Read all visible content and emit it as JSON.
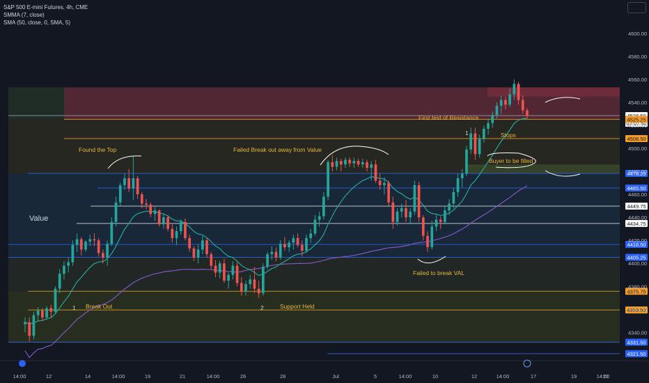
{
  "legend": {
    "symbol": "S&P 500 E-mini Futures, 4h, CME",
    "smma": "SMMA (7, close)",
    "sma": "SMA (50, close, 0, SMA, 5)"
  },
  "colors": {
    "background": "#131722",
    "bull": "#26a69a",
    "bear": "#ef5350",
    "annotation": "#e8b63a",
    "smma": "#26a69a",
    "sma": "#7e57c2"
  },
  "chart_data": {
    "type": "candlestick",
    "ylim": [
      4316,
      4612
    ],
    "y_ticks": [
      4340,
      4360,
      4380,
      4400,
      4420,
      4440,
      4460,
      4480,
      4500,
      4520,
      4540,
      4560,
      4580,
      4600
    ],
    "x_ticks": [
      "14:00",
      "12",
      "14",
      "14:00",
      "19",
      "21",
      "14:00",
      "26",
      "28",
      "Jul",
      "5",
      "14:00",
      "10",
      "12",
      "14:00",
      "17",
      "19",
      "21",
      "14:00"
    ],
    "price_labels": [
      {
        "value": "4528.50",
        "style": "current"
      },
      {
        "value": "02:07:50",
        "style": "countdown"
      },
      {
        "value": "4525.25",
        "style": "orange"
      },
      {
        "value": "4508.50",
        "style": "orange"
      },
      {
        "value": "4478.25",
        "style": "blue"
      },
      {
        "value": "4465.50",
        "style": "blue"
      },
      {
        "value": "4449.75",
        "style": "white"
      },
      {
        "value": "4434.75",
        "style": "white"
      },
      {
        "value": "4416.50",
        "style": "blue"
      },
      {
        "value": "4405.25",
        "style": "blue"
      },
      {
        "value": "4375.75",
        "style": "orange"
      },
      {
        "value": "4359.50",
        "style": "orange"
      },
      {
        "value": "4331.50",
        "style": "blue"
      },
      {
        "value": "4321.50",
        "style": "blue"
      }
    ],
    "zones": [
      {
        "name": "resistance",
        "from": 4525,
        "to": 4553,
        "color": "#5c2a35"
      },
      {
        "name": "upper",
        "from": 4478,
        "to": 4525,
        "color": "#2b2a22"
      },
      {
        "name": "value",
        "from": 4405,
        "to": 4478,
        "color": "#1b2c3c"
      },
      {
        "name": "lower",
        "from": 4376,
        "to": 4405,
        "color": "#242a24"
      },
      {
        "name": "breakout",
        "from": 4331,
        "to": 4376,
        "color": "#2b3320"
      }
    ],
    "annotations": [
      {
        "text": "Found the Top",
        "price": 4500,
        "bar": 10
      },
      {
        "text": "Failed Break out away from Value",
        "price": 4500,
        "bar": 40
      },
      {
        "text": "First test of Resistance",
        "price": 4530,
        "bar": 95
      },
      {
        "text": "Stops",
        "price": 4514,
        "bar": 115
      },
      {
        "text": "Buyer to be filled",
        "price": 4490,
        "bar": 115
      },
      {
        "text": "Value",
        "price": 4448,
        "bar": 2
      },
      {
        "text": "Failed to break VAL",
        "price": 4395,
        "bar": 97
      },
      {
        "text": "Break Out",
        "price": 4366,
        "bar": 10
      },
      {
        "text": "Support Held",
        "price": 4366,
        "bar": 63
      },
      {
        "text": "1",
        "price": 4366,
        "bar": 7
      },
      {
        "text": "2",
        "price": 4366,
        "bar": 57
      },
      {
        "text": "1",
        "price": 4517,
        "bar": 105
      }
    ],
    "candles": [
      [
        4347,
        4353,
        4340,
        4349
      ],
      [
        4349,
        4353,
        4332,
        4337
      ],
      [
        4337,
        4358,
        4334,
        4355
      ],
      [
        4355,
        4362,
        4350,
        4359
      ],
      [
        4359,
        4361,
        4350,
        4353
      ],
      [
        4353,
        4363,
        4351,
        4361
      ],
      [
        4361,
        4364,
        4353,
        4358
      ],
      [
        4358,
        4380,
        4356,
        4378
      ],
      [
        4378,
        4395,
        4374,
        4391
      ],
      [
        4391,
        4402,
        4386,
        4398
      ],
      [
        4398,
        4405,
        4392,
        4401
      ],
      [
        4401,
        4420,
        4398,
        4416
      ],
      [
        4416,
        4426,
        4410,
        4421
      ],
      [
        4421,
        4423,
        4407,
        4412
      ],
      [
        4412,
        4420,
        4410,
        4419
      ],
      [
        4419,
        4425,
        4415,
        4421
      ],
      [
        4421,
        4426,
        4415,
        4420
      ],
      [
        4420,
        4422,
        4406,
        4409
      ],
      [
        4409,
        4412,
        4400,
        4405
      ],
      [
        4405,
        4420,
        4398,
        4417
      ],
      [
        4417,
        4440,
        4415,
        4436
      ],
      [
        4436,
        4458,
        4432,
        4453
      ],
      [
        4453,
        4470,
        4450,
        4468
      ],
      [
        4468,
        4478,
        4464,
        4474
      ],
      [
        4474,
        4482,
        4462,
        4465
      ],
      [
        4465,
        4493,
        4455,
        4474
      ],
      [
        4474,
        4476,
        4456,
        4460
      ],
      [
        4460,
        4462,
        4448,
        4452
      ],
      [
        4452,
        4456,
        4447,
        4451
      ],
      [
        4451,
        4453,
        4440,
        4443
      ],
      [
        4443,
        4449,
        4437,
        4446
      ],
      [
        4446,
        4447,
        4432,
        4434
      ],
      [
        4434,
        4443,
        4430,
        4440
      ],
      [
        4440,
        4442,
        4428,
        4430
      ],
      [
        4430,
        4435,
        4418,
        4422
      ],
      [
        4422,
        4432,
        4416,
        4428
      ],
      [
        4428,
        4438,
        4425,
        4436
      ],
      [
        4436,
        4439,
        4420,
        4422
      ],
      [
        4422,
        4425,
        4410,
        4413
      ],
      [
        4413,
        4415,
        4402,
        4405
      ],
      [
        4405,
        4416,
        4400,
        4412
      ],
      [
        4412,
        4424,
        4408,
        4420
      ],
      [
        4420,
        4422,
        4405,
        4408
      ],
      [
        4408,
        4410,
        4395,
        4398
      ],
      [
        4398,
        4403,
        4388,
        4392
      ],
      [
        4392,
        4402,
        4387,
        4400
      ],
      [
        4400,
        4404,
        4383,
        4385
      ],
      [
        4385,
        4392,
        4378,
        4390
      ],
      [
        4390,
        4402,
        4386,
        4398
      ],
      [
        4398,
        4401,
        4380,
        4383
      ],
      [
        4383,
        4388,
        4372,
        4376
      ],
      [
        4376,
        4385,
        4372,
        4382
      ],
      [
        4382,
        4390,
        4378,
        4386
      ],
      [
        4386,
        4397,
        4374,
        4378
      ],
      [
        4378,
        4385,
        4370,
        4374
      ],
      [
        4374,
        4400,
        4372,
        4397
      ],
      [
        4397,
        4410,
        4395,
        4408
      ],
      [
        4408,
        4415,
        4403,
        4410
      ],
      [
        4410,
        4414,
        4402,
        4405
      ],
      [
        4405,
        4420,
        4403,
        4417
      ],
      [
        4417,
        4423,
        4411,
        4414
      ],
      [
        4414,
        4420,
        4410,
        4418
      ],
      [
        4418,
        4425,
        4412,
        4422
      ],
      [
        4422,
        4426,
        4414,
        4416
      ],
      [
        4416,
        4420,
        4406,
        4411
      ],
      [
        4411,
        4425,
        4409,
        4422
      ],
      [
        4422,
        4430,
        4418,
        4426
      ],
      [
        4426,
        4442,
        4424,
        4438
      ],
      [
        4438,
        4445,
        4432,
        4441
      ],
      [
        4441,
        4462,
        4438,
        4458
      ],
      [
        4458,
        4490,
        4455,
        4488
      ],
      [
        4488,
        4494,
        4480,
        4484
      ],
      [
        4484,
        4492,
        4481,
        4489
      ],
      [
        4489,
        4491,
        4480,
        4486
      ],
      [
        4486,
        4492,
        4483,
        4490
      ],
      [
        4490,
        4492,
        4484,
        4487
      ],
      [
        4487,
        4492,
        4483,
        4489
      ],
      [
        4489,
        4491,
        4484,
        4486
      ],
      [
        4486,
        4491,
        4483,
        4488
      ],
      [
        4488,
        4490,
        4480,
        4483
      ],
      [
        4483,
        4489,
        4472,
        4486
      ],
      [
        4486,
        4490,
        4470,
        4472
      ],
      [
        4472,
        4478,
        4464,
        4468
      ],
      [
        4468,
        4475,
        4460,
        4470
      ],
      [
        4470,
        4472,
        4450,
        4453
      ],
      [
        4453,
        4458,
        4430,
        4436
      ],
      [
        4436,
        4448,
        4433,
        4445
      ],
      [
        4445,
        4452,
        4440,
        4448
      ],
      [
        4448,
        4455,
        4436,
        4440
      ],
      [
        4440,
        4448,
        4434,
        4445
      ],
      [
        4445,
        4472,
        4442,
        4468
      ],
      [
        4468,
        4471,
        4436,
        4440
      ],
      [
        4440,
        4442,
        4420,
        4424
      ],
      [
        4424,
        4428,
        4410,
        4414
      ],
      [
        4414,
        4437,
        4412,
        4432
      ],
      [
        4432,
        4442,
        4428,
        4438
      ],
      [
        4438,
        4441,
        4430,
        4436
      ],
      [
        4436,
        4450,
        4434,
        4446
      ],
      [
        4446,
        4456,
        4442,
        4452
      ],
      [
        4452,
        4466,
        4448,
        4462
      ],
      [
        4462,
        4478,
        4458,
        4474
      ],
      [
        4474,
        4482,
        4466,
        4478
      ],
      [
        4478,
        4502,
        4476,
        4499
      ],
      [
        4499,
        4518,
        4495,
        4513
      ],
      [
        4513,
        4518,
        4490,
        4495
      ],
      [
        4495,
        4512,
        4492,
        4508
      ],
      [
        4508,
        4520,
        4505,
        4517
      ],
      [
        4517,
        4526,
        4512,
        4522
      ],
      [
        4522,
        4532,
        4518,
        4529
      ],
      [
        4529,
        4540,
        4526,
        4537
      ],
      [
        4537,
        4546,
        4530,
        4542
      ],
      [
        4542,
        4545,
        4534,
        4538
      ],
      [
        4538,
        4552,
        4536,
        4547
      ],
      [
        4547,
        4560,
        4542,
        4556
      ],
      [
        4556,
        4558,
        4538,
        4542
      ],
      [
        4542,
        4546,
        4530,
        4533
      ],
      [
        4533,
        4535,
        4526,
        4528
      ]
    ]
  }
}
